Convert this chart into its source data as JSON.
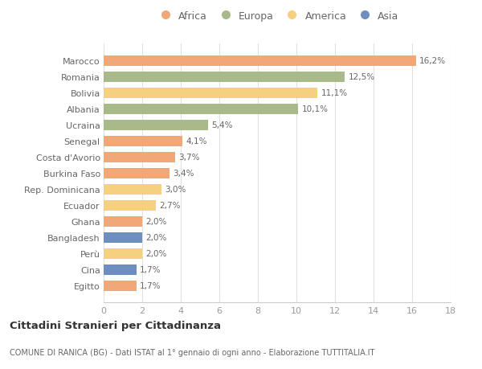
{
  "countries": [
    "Marocco",
    "Romania",
    "Bolivia",
    "Albania",
    "Ucraina",
    "Senegal",
    "Costa d'Avorio",
    "Burkina Faso",
    "Rep. Dominicana",
    "Ecuador",
    "Ghana",
    "Bangladesh",
    "Perù",
    "Cina",
    "Egitto"
  ],
  "values": [
    16.2,
    12.5,
    11.1,
    10.1,
    5.4,
    4.1,
    3.7,
    3.4,
    3.0,
    2.7,
    2.0,
    2.0,
    2.0,
    1.7,
    1.7
  ],
  "labels": [
    "16,2%",
    "12,5%",
    "11,1%",
    "10,1%",
    "5,4%",
    "4,1%",
    "3,7%",
    "3,4%",
    "3,0%",
    "2,7%",
    "2,0%",
    "2,0%",
    "2,0%",
    "1,7%",
    "1,7%"
  ],
  "continents": [
    "Africa",
    "Europa",
    "America",
    "Europa",
    "Europa",
    "Africa",
    "Africa",
    "Africa",
    "America",
    "America",
    "Africa",
    "Asia",
    "America",
    "Asia",
    "Africa"
  ],
  "colors": {
    "Africa": "#F0A878",
    "Europa": "#A8BA8A",
    "America": "#F5D080",
    "Asia": "#6E8EBF"
  },
  "legend_order": [
    "Africa",
    "Europa",
    "America",
    "Asia"
  ],
  "title": "Cittadini Stranieri per Cittadinanza",
  "subtitle": "COMUNE DI RANICA (BG) - Dati ISTAT al 1° gennaio di ogni anno - Elaborazione TUTTITALIA.IT",
  "xlim": [
    0,
    18
  ],
  "xticks": [
    0,
    2,
    4,
    6,
    8,
    10,
    12,
    14,
    16,
    18
  ],
  "background_color": "#FFFFFF",
  "grid_color": "#E0E0E0"
}
